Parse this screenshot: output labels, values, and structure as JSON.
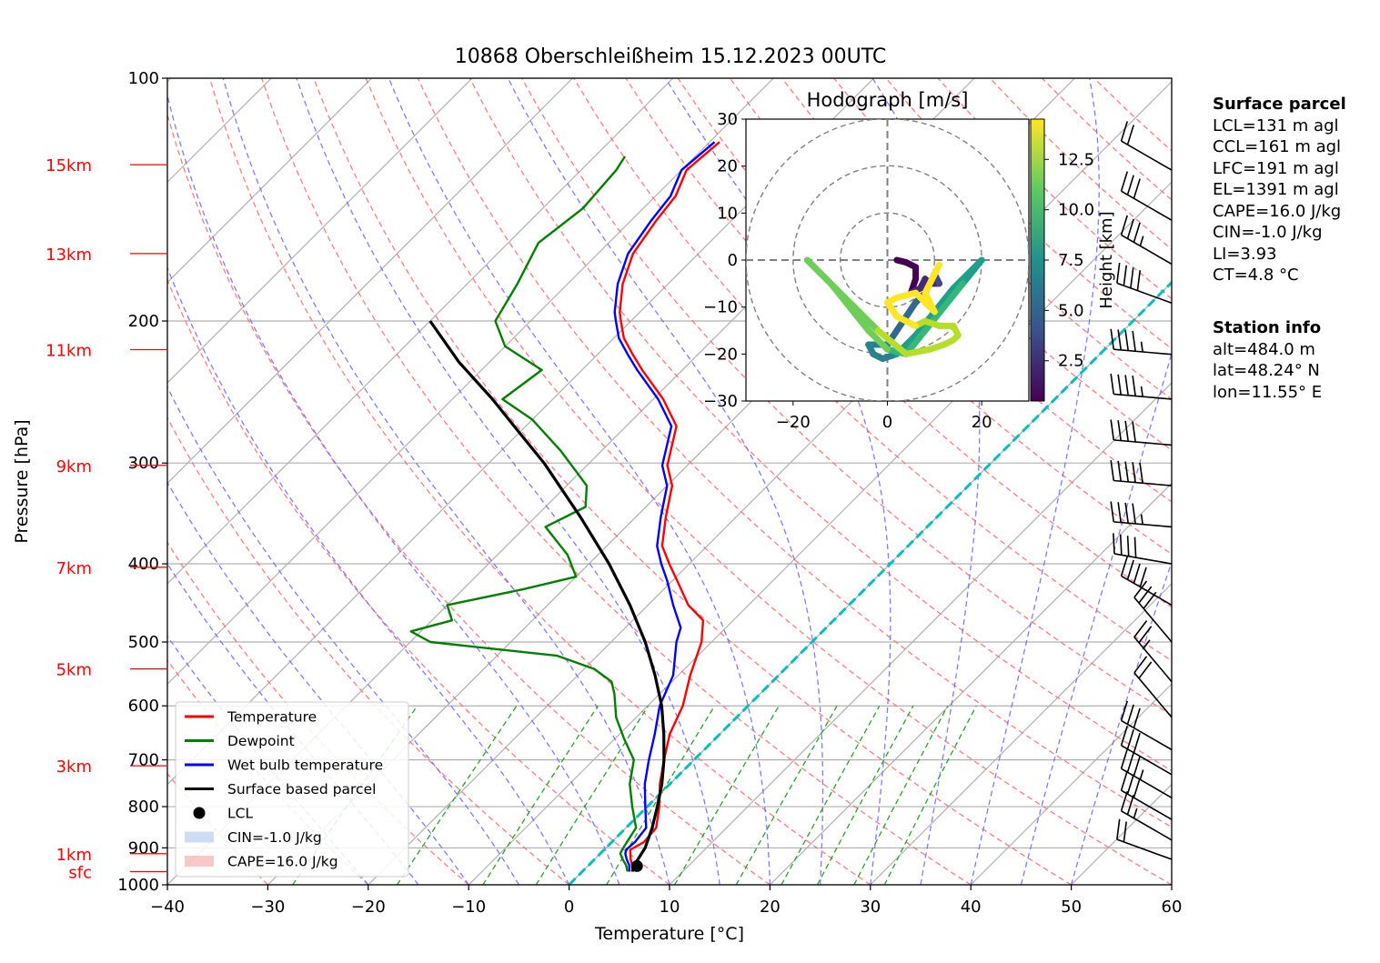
{
  "title": "10868 Oberschleißheim 15.12.2023 00UTC",
  "colors": {
    "temperature": "#ff0000",
    "dewpoint": "#008000",
    "wetbulb": "#0000ff",
    "parcel": "#000000",
    "height_labels": "#ff0000",
    "dry_adiabats": "#ff6666",
    "moist_adiabats": "#6666ff",
    "mixing_ratio": "#2ca02c",
    "isotherm_zero": "#00bfbf",
    "cin_fill": "#aec7e8",
    "cape_fill": "#f4a3a3"
  },
  "chart_data": [
    {
      "type": "line",
      "subtype": "skew-t log-p",
      "xlabel": "Temperature [°C]",
      "ylabel": "Pressure [hPa]",
      "xlim": [
        -40,
        60
      ],
      "ylim": [
        1000,
        100
      ],
      "x_ticks": [
        "−40",
        "−30",
        "−20",
        "−10",
        "0",
        "10",
        "20",
        "30",
        "40",
        "50",
        "60"
      ],
      "pressure_ticks": [
        "100",
        "200",
        "300",
        "400",
        "500",
        "600",
        "700",
        "800",
        "900",
        "1000"
      ],
      "y_scale": "log",
      "grid": true,
      "height_labels": [
        {
          "label": "15km",
          "p": 128
        },
        {
          "label": "13km",
          "p": 165
        },
        {
          "label": "11km",
          "p": 217
        },
        {
          "label": "9km",
          "p": 302
        },
        {
          "label": "7km",
          "p": 404
        },
        {
          "label": "5km",
          "p": 540
        },
        {
          "label": "3km",
          "p": 712
        },
        {
          "label": "1km",
          "p": 915
        },
        {
          "label": "sfc",
          "p": 963
        }
      ],
      "legend": {
        "placement": "lower-left",
        "entries": [
          {
            "label": "Temperature",
            "kind": "line",
            "color": "#ff0000"
          },
          {
            "label": "Dewpoint",
            "kind": "line",
            "color": "#008000"
          },
          {
            "label": "Wet bulb temperature",
            "kind": "line",
            "color": "#0000ff"
          },
          {
            "label": "Surface based parcel",
            "kind": "line",
            "color": "#000000"
          },
          {
            "label": "LCL",
            "kind": "dot",
            "color": "#000000"
          },
          {
            "label": "CIN=-1.0 J/kg",
            "kind": "patch",
            "color": "#aec7e8"
          },
          {
            "label": "CAPE=16.0 J/kg",
            "kind": "patch",
            "color": "#f4a3a3"
          }
        ]
      },
      "series": [
        {
          "name": "Temperature",
          "points": [
            [
              5.0,
              963
            ],
            [
              4.3,
              945
            ],
            [
              3.6,
              930
            ],
            [
              3.0,
              915
            ],
            [
              2.6,
              905
            ],
            [
              3.2,
              885
            ],
            [
              3.0,
              850
            ],
            [
              1.2,
              800
            ],
            [
              -1.0,
              750
            ],
            [
              -3.0,
              700
            ],
            [
              -5.0,
              650
            ],
            [
              -6.5,
              600
            ],
            [
              -8.8,
              550
            ],
            [
              -11.0,
              500
            ],
            [
              -13.0,
              470
            ],
            [
              -16.0,
              450
            ],
            [
              -19.5,
              420
            ],
            [
              -22.0,
              400
            ],
            [
              -24.5,
              380
            ],
            [
              -27.0,
              350
            ],
            [
              -29.5,
              320
            ],
            [
              -32.0,
              302
            ],
            [
              -35.0,
              270
            ],
            [
              -39.0,
              250
            ],
            [
              -44.0,
              230
            ],
            [
              -46.5,
              220
            ],
            [
              -49.0,
              210
            ],
            [
              -51.0,
              200
            ],
            [
              -52.0,
              195
            ],
            [
              -54.5,
              180
            ],
            [
              -56.5,
              165
            ],
            [
              -57.5,
              150
            ],
            [
              -58.0,
              140
            ],
            [
              -59.5,
              130
            ],
            [
              -59.0,
              120
            ]
          ]
        },
        {
          "name": "Dewpoint",
          "points": [
            [
              4.5,
              963
            ],
            [
              3.7,
              945
            ],
            [
              2.8,
              930
            ],
            [
              2.0,
              915
            ],
            [
              1.8,
              905
            ],
            [
              1.5,
              885
            ],
            [
              1.0,
              850
            ],
            [
              -1.5,
              800
            ],
            [
              -4.0,
              750
            ],
            [
              -6.0,
              700
            ],
            [
              -9.0,
              660
            ],
            [
              -12.0,
              620
            ],
            [
              -14.5,
              580
            ],
            [
              -16.0,
              560
            ],
            [
              -19.0,
              540
            ],
            [
              -24.0,
              520
            ],
            [
              -38.0,
              500
            ],
            [
              -41.0,
              485
            ],
            [
              -38.0,
              470
            ],
            [
              -40.0,
              450
            ],
            [
              -34.0,
              430
            ],
            [
              -30.0,
              415
            ],
            [
              -33.0,
              390
            ],
            [
              -38.0,
              360
            ],
            [
              -36.0,
              340
            ],
            [
              -38.0,
              320
            ],
            [
              -44.0,
              290
            ],
            [
              -50.0,
              265
            ],
            [
              -55.0,
              250
            ],
            [
              -54.0,
              230
            ],
            [
              -60.0,
              215
            ],
            [
              -63.5,
              200
            ],
            [
              -65.0,
              180
            ],
            [
              -67.0,
              160
            ],
            [
              -66.0,
              145
            ],
            [
              -66.5,
              130
            ],
            [
              -67.0,
              125
            ]
          ]
        },
        {
          "name": "Wet bulb temperature",
          "points": [
            [
              4.7,
              963
            ],
            [
              4.0,
              945
            ],
            [
              3.2,
              930
            ],
            [
              2.5,
              915
            ],
            [
              2.2,
              905
            ],
            [
              2.3,
              885
            ],
            [
              2.0,
              850
            ],
            [
              -0.2,
              800
            ],
            [
              -2.5,
              750
            ],
            [
              -4.5,
              700
            ],
            [
              -6.5,
              650
            ],
            [
              -8.8,
              600
            ],
            [
              -10.5,
              550
            ],
            [
              -13.5,
              500
            ],
            [
              -14.5,
              480
            ],
            [
              -17.5,
              450
            ],
            [
              -20.5,
              420
            ],
            [
              -22.8,
              400
            ],
            [
              -25.0,
              380
            ],
            [
              -27.5,
              350
            ],
            [
              -30.0,
              320
            ],
            [
              -32.5,
              302
            ],
            [
              -35.5,
              270
            ],
            [
              -39.5,
              250
            ],
            [
              -44.5,
              230
            ],
            [
              -47.0,
              220
            ],
            [
              -49.5,
              210
            ],
            [
              -51.5,
              200
            ],
            [
              -52.5,
              195
            ],
            [
              -55.0,
              180
            ],
            [
              -57.0,
              165
            ],
            [
              -58.0,
              150
            ],
            [
              -58.5,
              140
            ],
            [
              -60.0,
              130
            ],
            [
              -59.5,
              120
            ]
          ]
        },
        {
          "name": "Surface based parcel",
          "points": [
            [
              5.0,
              963
            ],
            [
              4.6,
              950
            ],
            [
              3.9,
              900
            ],
            [
              2.6,
              850
            ],
            [
              1.0,
              800
            ],
            [
              -0.8,
              750
            ],
            [
              -3.0,
              700
            ],
            [
              -5.6,
              650
            ],
            [
              -8.6,
              600
            ],
            [
              -12.3,
              550
            ],
            [
              -16.6,
              500
            ],
            [
              -21.8,
              450
            ],
            [
              -28.0,
              400
            ],
            [
              -35.5,
              350
            ],
            [
              -44.5,
              300
            ],
            [
              -50.0,
              275
            ],
            [
              -56.0,
              250
            ],
            [
              -63.0,
              225
            ],
            [
              -70.0,
              200
            ]
          ]
        }
      ],
      "lcl": {
        "t": 4.9,
        "p": 948
      }
    },
    {
      "type": "scatter",
      "subtype": "hodograph",
      "title": "Hodograph [m/s]",
      "xlim": [
        -30,
        30
      ],
      "ylim": [
        -30,
        30
      ],
      "x_ticks": [
        "−20",
        "0",
        "20"
      ],
      "y_ticks": [
        "30",
        "20",
        "10",
        "0",
        "−10",
        "−20",
        "−30"
      ],
      "rings": [
        10,
        20,
        30
      ],
      "colorbar": {
        "label": "Height [km]",
        "ticks": [
          "2.5",
          "5.0",
          "7.5",
          "10.0",
          "12.5"
        ],
        "min": 0.5,
        "max": 14.5
      },
      "points": [
        {
          "u": 2,
          "v": 0,
          "h": 0.5
        },
        {
          "u": 4,
          "v": -0.5,
          "h": 0.7
        },
        {
          "u": 6,
          "v": -1.5,
          "h": 0.9
        },
        {
          "u": 6,
          "v": -4,
          "h": 1.2
        },
        {
          "u": 5,
          "v": -7,
          "h": 1.6
        },
        {
          "u": 7,
          "v": -6,
          "h": 2.0
        },
        {
          "u": 8,
          "v": -4,
          "h": 2.4
        },
        {
          "u": 9,
          "v": -5,
          "h": 2.8
        },
        {
          "u": 11,
          "v": -5,
          "h": 3.2
        },
        {
          "u": 10,
          "v": -3,
          "h": 3.6
        },
        {
          "u": 8,
          "v": -7,
          "h": 4.0
        },
        {
          "u": 6,
          "v": -9,
          "h": 4.4
        },
        {
          "u": 4,
          "v": -12,
          "h": 4.8
        },
        {
          "u": 2,
          "v": -15,
          "h": 5.3
        },
        {
          "u": 0,
          "v": -18,
          "h": 5.8
        },
        {
          "u": -4,
          "v": -18,
          "h": 6.3
        },
        {
          "u": -3,
          "v": -20,
          "h": 6.8
        },
        {
          "u": -1,
          "v": -21,
          "h": 7.1
        },
        {
          "u": 2,
          "v": -20,
          "h": 7.3
        },
        {
          "u": 6,
          "v": -16,
          "h": 7.5
        },
        {
          "u": 10,
          "v": -11,
          "h": 7.7
        },
        {
          "u": 14,
          "v": -6,
          "h": 7.8
        },
        {
          "u": 18,
          "v": -2,
          "h": 8.0
        },
        {
          "u": 20,
          "v": 0,
          "h": 8.2
        },
        {
          "u": 16,
          "v": -5,
          "h": 8.6
        },
        {
          "u": 12,
          "v": -10,
          "h": 9.0
        },
        {
          "u": 8,
          "v": -15,
          "h": 9.4
        },
        {
          "u": 4,
          "v": -20,
          "h": 9.8
        },
        {
          "u": 0,
          "v": -19,
          "h": 10.1
        },
        {
          "u": -4,
          "v": -15,
          "h": 10.3
        },
        {
          "u": -8,
          "v": -10,
          "h": 10.5
        },
        {
          "u": -12,
          "v": -5,
          "h": 10.7
        },
        {
          "u": -17,
          "v": 0,
          "h": 10.9
        },
        {
          "u": -14,
          "v": -3,
          "h": 11.1
        },
        {
          "u": -8,
          "v": -9,
          "h": 11.3
        },
        {
          "u": -2,
          "v": -15,
          "h": 11.5
        },
        {
          "u": 4,
          "v": -20,
          "h": 11.8
        },
        {
          "u": 9,
          "v": -19,
          "h": 12.0
        },
        {
          "u": 12,
          "v": -18,
          "h": 12.2
        },
        {
          "u": 14,
          "v": -17,
          "h": 12.4
        },
        {
          "u": 15,
          "v": -16,
          "h": 12.6
        },
        {
          "u": 14,
          "v": -14,
          "h": 12.7
        },
        {
          "u": 11,
          "v": -14,
          "h": 12.8
        },
        {
          "u": 8,
          "v": -13,
          "h": 12.9
        },
        {
          "u": 6,
          "v": -14,
          "h": 13.0
        },
        {
          "u": 2,
          "v": -12,
          "h": 13.1
        },
        {
          "u": 0,
          "v": -9,
          "h": 13.3
        },
        {
          "u": 2,
          "v": -8,
          "h": 13.5
        },
        {
          "u": 6,
          "v": -7,
          "h": 13.7
        },
        {
          "u": 10,
          "v": -11,
          "h": 13.9
        },
        {
          "u": 8,
          "v": -7,
          "h": 14.1
        },
        {
          "u": 10,
          "v": -3,
          "h": 14.3
        },
        {
          "u": 11,
          "v": -1,
          "h": 14.5
        }
      ]
    }
  ],
  "wind_barbs": [
    {
      "p": 130,
      "speed_kt": 20,
      "dir": 300
    },
    {
      "p": 150,
      "speed_kt": 30,
      "dir": 300
    },
    {
      "p": 170,
      "speed_kt": 35,
      "dir": 300
    },
    {
      "p": 190,
      "speed_kt": 40,
      "dir": 290
    },
    {
      "p": 220,
      "speed_kt": 45,
      "dir": 275
    },
    {
      "p": 250,
      "speed_kt": 45,
      "dir": 275
    },
    {
      "p": 285,
      "speed_kt": 40,
      "dir": 275
    },
    {
      "p": 320,
      "speed_kt": 50,
      "dir": 275
    },
    {
      "p": 360,
      "speed_kt": 45,
      "dir": 275
    },
    {
      "p": 400,
      "speed_kt": 40,
      "dir": 280
    },
    {
      "p": 450,
      "speed_kt": 40,
      "dir": 300
    },
    {
      "p": 500,
      "speed_kt": 30,
      "dir": 320
    },
    {
      "p": 560,
      "speed_kt": 25,
      "dir": 320
    },
    {
      "p": 620,
      "speed_kt": 20,
      "dir": 320
    },
    {
      "p": 680,
      "speed_kt": 30,
      "dir": 300
    },
    {
      "p": 730,
      "speed_kt": 30,
      "dir": 300
    },
    {
      "p": 780,
      "speed_kt": 35,
      "dir": 300
    },
    {
      "p": 830,
      "speed_kt": 30,
      "dir": 300
    },
    {
      "p": 880,
      "speed_kt": 25,
      "dir": 300
    },
    {
      "p": 930,
      "speed_kt": 20,
      "dir": 290
    }
  ],
  "panels": {
    "surface_parcel": {
      "heading": "Surface parcel",
      "lines": [
        "LCL=131 m agl",
        "CCL=161 m agl",
        "LFC=191 m agl",
        "EL=1391 m agl",
        "CAPE=16.0 J/kg",
        "CIN=-1.0 J/kg",
        "LI=3.93",
        "CT=4.8 °C"
      ]
    },
    "station_info": {
      "heading": "Station info",
      "lines": [
        "alt=484.0 m",
        "lat=48.24° N",
        "lon=11.55° E"
      ]
    }
  }
}
